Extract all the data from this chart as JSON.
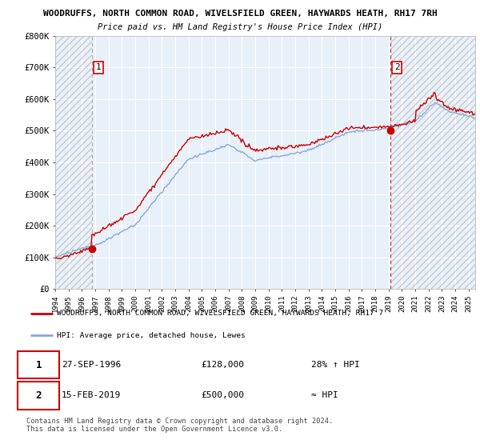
{
  "title_line1": "WOODRUFFS, NORTH COMMON ROAD, WIVELSFIELD GREEN, HAYWARDS HEATH, RH17 7RH",
  "title_line2": "Price paid vs. HM Land Registry's House Price Index (HPI)",
  "ylim": [
    0,
    800000
  ],
  "xlim_start": 1994.0,
  "xlim_end": 2025.5,
  "yticks": [
    0,
    100000,
    200000,
    300000,
    400000,
    500000,
    600000,
    700000,
    800000
  ],
  "ytick_labels": [
    "£0",
    "£100K",
    "£200K",
    "£300K",
    "£400K",
    "£500K",
    "£600K",
    "£700K",
    "£800K"
  ],
  "xticks": [
    1994,
    1995,
    1996,
    1997,
    1998,
    1999,
    2000,
    2001,
    2002,
    2003,
    2004,
    2005,
    2006,
    2007,
    2008,
    2009,
    2010,
    2011,
    2012,
    2013,
    2014,
    2015,
    2016,
    2017,
    2018,
    2019,
    2020,
    2021,
    2022,
    2023,
    2024,
    2025
  ],
  "sale1_x": 1996.74,
  "sale1_y": 128000,
  "sale1_label": "1",
  "sale2_x": 2019.12,
  "sale2_y": 500000,
  "sale2_label": "2",
  "sale_color": "#cc0000",
  "hpi_color": "#88aadd",
  "legend_label1": "WOODRUFFS, NORTH COMMON ROAD, WIVELSFIELD GREEN, HAYWARDS HEATH, RH17 7",
  "legend_label2": "HPI: Average price, detached house, Lewes",
  "annotation1_date": "27-SEP-1996",
  "annotation1_price": "£128,000",
  "annotation1_hpi": "28% ↑ HPI",
  "annotation2_date": "15-FEB-2019",
  "annotation2_price": "£500,000",
  "annotation2_hpi": "≈ HPI",
  "footer": "Contains HM Land Registry data © Crown copyright and database right 2024.\nThis data is licensed under the Open Government Licence v3.0.",
  "bg_color": "#e8f0f8",
  "grid_color": "#ffffff",
  "hatch_color": "#bbbbbb"
}
